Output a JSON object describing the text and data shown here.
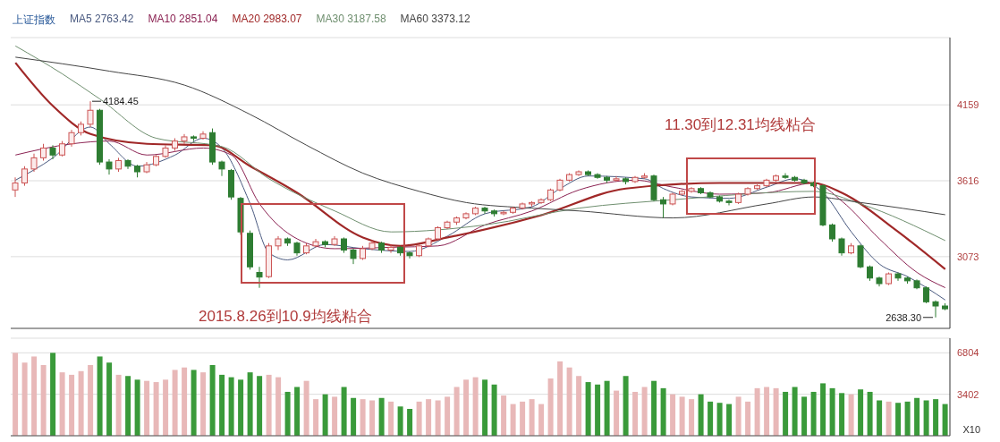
{
  "chart_data": [
    {
      "type": "candlestick",
      "title": "上证指数",
      "legend": "top left",
      "grid": "y",
      "categories": [
        null,
        null,
        null,
        null,
        null,
        null,
        null,
        null,
        null,
        null,
        null,
        null,
        null,
        null,
        null,
        null,
        null,
        null,
        null,
        null,
        null,
        null,
        null,
        null,
        null,
        null,
        null,
        null,
        null,
        null,
        null,
        null,
        null,
        null,
        null,
        null,
        null,
        null,
        null,
        null,
        null,
        null,
        null,
        null,
        null,
        null,
        null,
        null,
        null,
        null,
        null,
        null,
        null,
        null,
        null,
        null,
        null,
        null,
        null,
        null,
        null,
        null,
        null,
        null,
        null,
        null,
        null,
        null,
        null,
        null,
        null,
        null,
        null,
        null,
        null,
        null,
        null,
        null,
        null,
        null,
        null,
        null,
        null,
        null,
        null,
        null,
        null,
        null,
        null,
        null,
        null,
        null,
        null,
        null,
        null,
        null,
        null,
        null,
        null,
        null
      ],
      "ohlc": [
        [
          3550,
          3640,
          3500,
          3600
        ],
        [
          3600,
          3720,
          3580,
          3700
        ],
        [
          3700,
          3810,
          3680,
          3780
        ],
        [
          3780,
          3880,
          3760,
          3850
        ],
        [
          3850,
          3870,
          3770,
          3800
        ],
        [
          3800,
          3900,
          3790,
          3880
        ],
        [
          3880,
          3980,
          3860,
          3960
        ],
        [
          3960,
          4040,
          3940,
          4020
        ],
        [
          4020,
          4184.45,
          4000,
          4120
        ],
        [
          4120,
          4130,
          3730,
          3750
        ],
        [
          3750,
          3770,
          3660,
          3700
        ],
        [
          3700,
          3780,
          3680,
          3760
        ],
        [
          3760,
          3770,
          3700,
          3720
        ],
        [
          3720,
          3730,
          3640,
          3680
        ],
        [
          3680,
          3750,
          3670,
          3730
        ],
        [
          3730,
          3800,
          3720,
          3790
        ],
        [
          3790,
          3870,
          3780,
          3850
        ],
        [
          3850,
          3920,
          3830,
          3900
        ],
        [
          3900,
          3950,
          3880,
          3930
        ],
        [
          3930,
          3940,
          3900,
          3920
        ],
        [
          3920,
          3970,
          3910,
          3950
        ],
        [
          3960,
          3990,
          3730,
          3750
        ],
        [
          3750,
          3760,
          3650,
          3700
        ],
        [
          3690,
          3700,
          3480,
          3500
        ],
        [
          3490,
          3500,
          3230,
          3250
        ],
        [
          3240,
          3260,
          2980,
          3000
        ],
        [
          2960,
          3000,
          2850,
          2927
        ],
        [
          2930,
          3170,
          2920,
          3150
        ],
        [
          3150,
          3220,
          3120,
          3200
        ],
        [
          3200,
          3210,
          3150,
          3170
        ],
        [
          3170,
          3180,
          3080,
          3100
        ],
        [
          3100,
          3170,
          3090,
          3150
        ],
        [
          3150,
          3200,
          3140,
          3180
        ],
        [
          3180,
          3190,
          3140,
          3160
        ],
        [
          3160,
          3220,
          3150,
          3200
        ],
        [
          3200,
          3210,
          3100,
          3120
        ],
        [
          3120,
          3130,
          3020,
          3060
        ],
        [
          3060,
          3150,
          3050,
          3130
        ],
        [
          3130,
          3190,
          3120,
          3170
        ],
        [
          3170,
          3180,
          3100,
          3120
        ],
        [
          3120,
          3160,
          3100,
          3140
        ],
        [
          3140,
          3150,
          3080,
          3100
        ],
        [
          3100,
          3110,
          3060,
          3080
        ],
        [
          3080,
          3160,
          3070,
          3150
        ],
        [
          3150,
          3210,
          3140,
          3200
        ],
        [
          3200,
          3290,
          3190,
          3280
        ],
        [
          3280,
          3330,
          3270,
          3320
        ],
        [
          3320,
          3360,
          3300,
          3350
        ],
        [
          3350,
          3390,
          3340,
          3380
        ],
        [
          3380,
          3430,
          3370,
          3420
        ],
        [
          3420,
          3430,
          3380,
          3400
        ],
        [
          3400,
          3410,
          3360,
          3380
        ],
        [
          3380,
          3400,
          3370,
          3390
        ],
        [
          3390,
          3430,
          3380,
          3420
        ],
        [
          3420,
          3460,
          3410,
          3450
        ],
        [
          3450,
          3470,
          3430,
          3460
        ],
        [
          3460,
          3490,
          3450,
          3480
        ],
        [
          3480,
          3560,
          3470,
          3550
        ],
        [
          3550,
          3630,
          3540,
          3620
        ],
        [
          3620,
          3670,
          3610,
          3660
        ],
        [
          3660,
          3690,
          3650,
          3680
        ],
        [
          3680,
          3690,
          3650,
          3660
        ],
        [
          3660,
          3670,
          3630,
          3640
        ],
        [
          3640,
          3650,
          3600,
          3620
        ],
        [
          3620,
          3650,
          3610,
          3630
        ],
        [
          3630,
          3640,
          3590,
          3610
        ],
        [
          3610,
          3650,
          3600,
          3640
        ],
        [
          3640,
          3670,
          3630,
          3650
        ],
        [
          3650,
          3660,
          3470,
          3480
        ],
        [
          3480,
          3500,
          3350,
          3450
        ],
        [
          3450,
          3530,
          3440,
          3520
        ],
        [
          3520,
          3550,
          3510,
          3540
        ],
        [
          3540,
          3570,
          3530,
          3560
        ],
        [
          3560,
          3570,
          3520,
          3530
        ],
        [
          3530,
          3540,
          3490,
          3500
        ],
        [
          3500,
          3510,
          3460,
          3470
        ],
        [
          3470,
          3480,
          3440,
          3460
        ],
        [
          3460,
          3530,
          3450,
          3520
        ],
        [
          3520,
          3570,
          3510,
          3560
        ],
        [
          3560,
          3590,
          3550,
          3580
        ],
        [
          3580,
          3630,
          3570,
          3620
        ],
        [
          3620,
          3660,
          3610,
          3650
        ],
        [
          3650,
          3670,
          3630,
          3640
        ],
        [
          3640,
          3650,
          3610,
          3620
        ],
        [
          3620,
          3630,
          3590,
          3600
        ],
        [
          3600,
          3610,
          3570,
          3580
        ],
        [
          3580,
          3590,
          3290,
          3300
        ],
        [
          3300,
          3310,
          3180,
          3200
        ],
        [
          3200,
          3210,
          3080,
          3100
        ],
        [
          3100,
          3170,
          3090,
          3150
        ],
        [
          3150,
          3160,
          2990,
          3000
        ],
        [
          3000,
          3010,
          2900,
          2920
        ],
        [
          2920,
          2930,
          2860,
          2880
        ],
        [
          2880,
          2960,
          2870,
          2950
        ],
        [
          2950,
          2960,
          2900,
          2920
        ],
        [
          2920,
          2930,
          2880,
          2900
        ],
        [
          2900,
          2910,
          2840,
          2850
        ],
        [
          2850,
          2860,
          2740,
          2750
        ],
        [
          2750,
          2760,
          2638.3,
          2720
        ],
        [
          2720,
          2740,
          2690,
          2700
        ]
      ],
      "colors": [
        "#cc5555",
        "#cc5555",
        "#cc5555",
        "#cc5555",
        "#2e7d32",
        "#cc5555",
        "#cc5555",
        "#cc5555",
        "#cc5555",
        "#2e7d32",
        "#2e7d32",
        "#cc5555",
        "#2e7d32",
        "#2e7d32",
        "#cc5555",
        "#cc5555",
        "#cc5555",
        "#cc5555",
        "#cc5555",
        "#2e7d32",
        "#cc5555",
        "#2e7d32",
        "#2e7d32",
        "#2e7d32",
        "#2e7d32",
        "#2e7d32",
        "#2e7d32",
        "#cc5555",
        "#cc5555",
        "#2e7d32",
        "#2e7d32",
        "#cc5555",
        "#cc5555",
        "#2e7d32",
        "#cc5555",
        "#2e7d32",
        "#2e7d32",
        "#cc5555",
        "#cc5555",
        "#2e7d32",
        "#cc5555",
        "#2e7d32",
        "#2e7d32",
        "#cc5555",
        "#cc5555",
        "#cc5555",
        "#cc5555",
        "#cc5555",
        "#cc5555",
        "#cc5555",
        "#2e7d32",
        "#2e7d32",
        "#cc5555",
        "#cc5555",
        "#cc5555",
        "#cc5555",
        "#cc5555",
        "#cc5555",
        "#cc5555",
        "#cc5555",
        "#cc5555",
        "#2e7d32",
        "#2e7d32",
        "#2e7d32",
        "#cc5555",
        "#2e7d32",
        "#cc5555",
        "#cc5555",
        "#2e7d32",
        "#2e7d32",
        "#cc5555",
        "#cc5555",
        "#cc5555",
        "#2e7d32",
        "#2e7d32",
        "#2e7d32",
        "#2e7d32",
        "#cc5555",
        "#cc5555",
        "#cc5555",
        "#cc5555",
        "#cc5555",
        "#2e7d32",
        "#2e7d32",
        "#2e7d32",
        "#2e7d32",
        "#2e7d32",
        "#2e7d32",
        "#2e7d32",
        "#cc5555",
        "#2e7d32",
        "#2e7d32",
        "#2e7d32",
        "#cc5555",
        "#2e7d32",
        "#2e7d32",
        "#2e7d32",
        "#2e7d32",
        "#2e7d32",
        "#2e7d32"
      ],
      "series": [
        {
          "type": "line",
          "name": "MA5 2763.42",
          "color": "#4a5a80",
          "values": [
            3620,
            null,
            null,
            null,
            3780,
            null,
            null,
            null,
            4000,
            null,
            3880,
            null,
            null,
            3720,
            null,
            null,
            null,
            3800,
            null,
            null,
            3920,
            null,
            3850,
            null,
            null,
            3450,
            null,
            3100,
            null,
            3050,
            null,
            null,
            null,
            3160,
            null,
            null,
            null,
            3130,
            null,
            null,
            null,
            null,
            3110,
            null,
            null,
            null,
            3220,
            null,
            null,
            null,
            3380,
            null,
            null,
            null,
            null,
            3430,
            null,
            null,
            3560,
            null,
            null,
            3650,
            null,
            null,
            null,
            null,
            null,
            3630,
            null,
            3560,
            null,
            null,
            3500,
            null,
            null,
            null,
            3490,
            null,
            null,
            null,
            3570,
            null,
            null,
            3630,
            null,
            null,
            3530,
            null,
            null,
            3250,
            null,
            null,
            3020,
            null,
            null,
            2930,
            null,
            null,
            null,
            2763
          ]
        },
        {
          "type": "line",
          "name": "MA10 2851.04",
          "color": "#8b2252",
          "values": [
            3800,
            null,
            null,
            null,
            null,
            null,
            3880,
            null,
            null,
            null,
            3900,
            null,
            null,
            null,
            3800,
            null,
            null,
            null,
            null,
            null,
            3850,
            null,
            null,
            3800,
            null,
            null,
            3450,
            null,
            null,
            null,
            3200,
            null,
            null,
            null,
            3130,
            null,
            null,
            null,
            null,
            null,
            3140,
            null,
            null,
            null,
            null,
            3150,
            null,
            null,
            null,
            null,
            3300,
            null,
            null,
            null,
            null,
            3400,
            null,
            null,
            null,
            null,
            3550,
            null,
            null,
            null,
            null,
            null,
            3620,
            null,
            null,
            null,
            3570,
            null,
            null,
            null,
            null,
            3520,
            null,
            null,
            null,
            null,
            3530,
            null,
            null,
            null,
            null,
            3600,
            null,
            null,
            3470,
            null,
            null,
            null,
            3200,
            null,
            null,
            null,
            2960,
            null,
            null,
            2851
          ]
        },
        {
          "type": "line",
          "name": "MA20 2983.07",
          "color": "#a02828",
          "values": [
            4460,
            null,
            null,
            null,
            4150,
            null,
            null,
            null,
            3950,
            null,
            null,
            null,
            null,
            null,
            3880,
            null,
            null,
            null,
            null,
            null,
            null,
            3870,
            null,
            null,
            null,
            3720,
            null,
            null,
            null,
            null,
            3530,
            null,
            null,
            null,
            null,
            null,
            null,
            3210,
            null,
            null,
            null,
            3150,
            null,
            null,
            null,
            null,
            3210,
            null,
            null,
            null,
            null,
            null,
            null,
            null,
            null,
            null,
            3370,
            null,
            null,
            null,
            null,
            null,
            null,
            null,
            null,
            3560,
            null,
            null,
            null,
            null,
            null,
            null,
            null,
            null,
            null,
            3600,
            null,
            null,
            null,
            null,
            null,
            null,
            null,
            null,
            null,
            3600,
            null,
            null,
            3530,
            null,
            null,
            null,
            null,
            null,
            3250,
            null,
            null,
            null,
            null,
            2983
          ]
        },
        {
          "type": "line",
          "name": "MA30 3187.58",
          "color": "#6f8f6f",
          "values": [
            4580,
            null,
            null,
            null,
            null,
            4380,
            null,
            null,
            null,
            4200,
            null,
            null,
            null,
            null,
            null,
            3920,
            null,
            null,
            null,
            null,
            null,
            null,
            3860,
            null,
            null,
            null,
            null,
            3630,
            null,
            null,
            null,
            null,
            null,
            null,
            3400,
            null,
            null,
            null,
            null,
            null,
            3250,
            null,
            null,
            null,
            null,
            null,
            null,
            null,
            null,
            null,
            3300,
            null,
            null,
            null,
            null,
            null,
            null,
            null,
            null,
            null,
            3420,
            null,
            null,
            null,
            null,
            null,
            null,
            null,
            null,
            null,
            3480,
            null,
            null,
            null,
            null,
            null,
            null,
            null,
            null,
            null,
            null,
            null,
            null,
            null,
            null,
            3540,
            null,
            null,
            null,
            null,
            3450,
            null,
            null,
            null,
            null,
            null,
            null,
            null,
            null,
            3188
          ]
        },
        {
          "type": "line",
          "name": "MA60 3373.12",
          "color": "#444444",
          "values": [
            4500,
            null,
            null,
            null,
            null,
            null,
            null,
            null,
            null,
            null,
            4400,
            null,
            null,
            null,
            null,
            null,
            null,
            null,
            4300,
            null,
            null,
            null,
            null,
            null,
            null,
            4090,
            null,
            null,
            null,
            null,
            null,
            3870,
            null,
            null,
            null,
            null,
            null,
            3670,
            null,
            null,
            null,
            null,
            null,
            3540,
            null,
            null,
            null,
            null,
            3460,
            null,
            null,
            null,
            null,
            null,
            null,
            3420,
            null,
            null,
            null,
            null,
            3400,
            null,
            null,
            null,
            null,
            null,
            null,
            null,
            null,
            null,
            3350,
            null,
            null,
            null,
            null,
            null,
            null,
            null,
            null,
            null,
            3450,
            null,
            null,
            null,
            null,
            3500,
            null,
            null,
            null,
            null,
            3460,
            null,
            null,
            null,
            null,
            null,
            null,
            null,
            null,
            3373
          ]
        }
      ],
      "ylim": [
        2560,
        4640
      ],
      "yticks": [
        3073,
        3616,
        4159
      ],
      "annotations": [
        "4184.45",
        "2638.30",
        "2015.8.26到10.9均线粘合",
        "11.30到12.31均线粘合"
      ]
    },
    {
      "type": "bar",
      "ylabel": "X10",
      "grid": "y",
      "categories": [
        null,
        null,
        null,
        null,
        null,
        null,
        null,
        null,
        null,
        null,
        null,
        null,
        null,
        null,
        null,
        null,
        null,
        null,
        null,
        null,
        null,
        null,
        null,
        null,
        null,
        null,
        null,
        null,
        null,
        null,
        null,
        null,
        null,
        null,
        null,
        null,
        null,
        null,
        null,
        null,
        null,
        null,
        null,
        null,
        null,
        null,
        null,
        null,
        null,
        null,
        null,
        null,
        null,
        null,
        null,
        null,
        null,
        null,
        null,
        null,
        null,
        null,
        null,
        null,
        null,
        null,
        null,
        null,
        null,
        null,
        null,
        null,
        null,
        null,
        null,
        null,
        null,
        null,
        null,
        null,
        null,
        null,
        null,
        null,
        null,
        null,
        null,
        null,
        null,
        null,
        null,
        null,
        null,
        null,
        null,
        null,
        null,
        null,
        null,
        null
      ],
      "values": [
        6800,
        6000,
        6500,
        5800,
        6800,
        5200,
        5000,
        5300,
        5800,
        6500,
        6000,
        5000,
        4900,
        4600,
        4500,
        4400,
        4600,
        5400,
        5600,
        5400,
        5200,
        5800,
        5000,
        4800,
        4600,
        5200,
        4900,
        5000,
        4800,
        3600,
        4000,
        4500,
        3000,
        3400,
        3200,
        4000,
        3100,
        3000,
        2900,
        3100,
        2800,
        2400,
        2200,
        2800,
        3000,
        2900,
        3200,
        4000,
        4600,
        4800,
        4600,
        4200,
        3300,
        2600,
        2800,
        3000,
        2600,
        4700,
        6100,
        5600,
        4900,
        4400,
        4200,
        4500,
        3700,
        4900,
        3600,
        4000,
        4500,
        3900,
        3400,
        3200,
        3000,
        3400,
        2800,
        2700,
        2600,
        3200,
        2800,
        3900,
        4000,
        3900,
        3600,
        4000,
        3200,
        3600,
        4300,
        3900,
        3500,
        3400,
        3800,
        3600,
        2900,
        2800,
        2700,
        2800,
        3100,
        2900,
        3000,
        2600
      ],
      "colors": [
        "#e8b8b8",
        "#e8b8b8",
        "#e8b8b8",
        "#e8b8b8",
        "#3a9a3a",
        "#e8b8b8",
        "#e8b8b8",
        "#e8b8b8",
        "#e8b8b8",
        "#3a9a3a",
        "#3a9a3a",
        "#e8b8b8",
        "#3a9a3a",
        "#3a9a3a",
        "#e8b8b8",
        "#e8b8b8",
        "#e8b8b8",
        "#e8b8b8",
        "#e8b8b8",
        "#3a9a3a",
        "#e8b8b8",
        "#3a9a3a",
        "#3a9a3a",
        "#3a9a3a",
        "#3a9a3a",
        "#3a9a3a",
        "#3a9a3a",
        "#e8b8b8",
        "#e8b8b8",
        "#3a9a3a",
        "#3a9a3a",
        "#e8b8b8",
        "#e8b8b8",
        "#3a9a3a",
        "#e8b8b8",
        "#3a9a3a",
        "#3a9a3a",
        "#e8b8b8",
        "#e8b8b8",
        "#3a9a3a",
        "#e8b8b8",
        "#3a9a3a",
        "#3a9a3a",
        "#e8b8b8",
        "#e8b8b8",
        "#e8b8b8",
        "#e8b8b8",
        "#e8b8b8",
        "#e8b8b8",
        "#e8b8b8",
        "#3a9a3a",
        "#3a9a3a",
        "#e8b8b8",
        "#e8b8b8",
        "#e8b8b8",
        "#e8b8b8",
        "#e8b8b8",
        "#e8b8b8",
        "#e8b8b8",
        "#e8b8b8",
        "#e8b8b8",
        "#3a9a3a",
        "#3a9a3a",
        "#3a9a3a",
        "#e8b8b8",
        "#3a9a3a",
        "#e8b8b8",
        "#e8b8b8",
        "#3a9a3a",
        "#3a9a3a",
        "#e8b8b8",
        "#e8b8b8",
        "#e8b8b8",
        "#3a9a3a",
        "#3a9a3a",
        "#3a9a3a",
        "#3a9a3a",
        "#e8b8b8",
        "#e8b8b8",
        "#e8b8b8",
        "#e8b8b8",
        "#e8b8b8",
        "#3a9a3a",
        "#3a9a3a",
        "#3a9a3a",
        "#3a9a3a",
        "#3a9a3a",
        "#3a9a3a",
        "#3a9a3a",
        "#e8b8b8",
        "#3a9a3a",
        "#3a9a3a",
        "#3a9a3a",
        "#e8b8b8",
        "#3a9a3a",
        "#3a9a3a",
        "#3a9a3a",
        "#3a9a3a",
        "#3a9a3a",
        "#3a9a3a"
      ],
      "ylim": [
        0,
        8000
      ],
      "yticks": [
        3402,
        6804
      ]
    }
  ]
}
